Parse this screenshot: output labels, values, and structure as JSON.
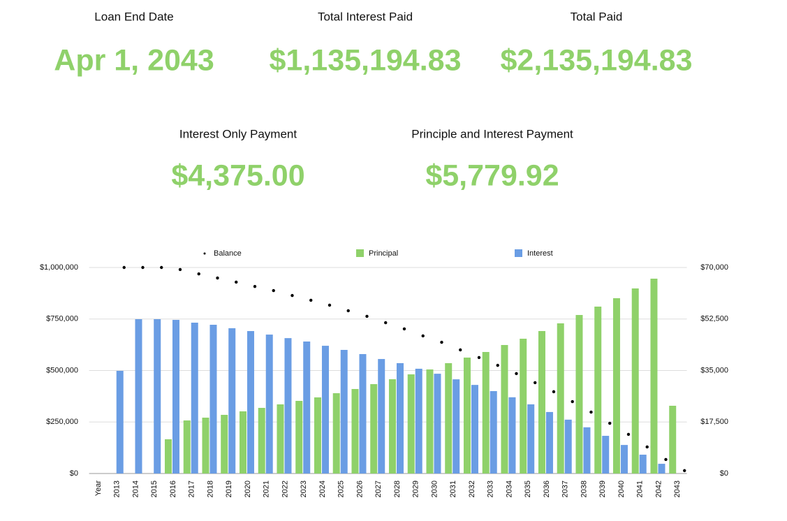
{
  "stats": [
    {
      "label": "Loan End Date",
      "value": "Apr 1, 2043"
    },
    {
      "label": "Total Interest Paid",
      "value": "$1,135,194.83"
    },
    {
      "label": "Total Paid",
      "value": "$2,135,194.83"
    },
    {
      "label": "Interest Only Payment",
      "value": "$4,375.00"
    },
    {
      "label": "Principle and Interest Payment",
      "value": "$5,779.92"
    }
  ],
  "chart_data": {
    "type": "bar",
    "categories": [
      "Year",
      "2013",
      "2014",
      "2015",
      "2016",
      "2017",
      "2018",
      "2019",
      "2020",
      "2021",
      "2022",
      "2023",
      "2024",
      "2025",
      "2026",
      "2027",
      "2028",
      "2029",
      "2030",
      "2031",
      "2032",
      "2033",
      "2034",
      "2035",
      "2036",
      "2037",
      "2038",
      "2039",
      "2040",
      "2041",
      "2042",
      "2043"
    ],
    "series": [
      {
        "name": "Balance",
        "type": "scatter",
        "color": "#000000",
        "axis": "y",
        "values": [
          null,
          1000000,
          1000000,
          1000000,
          990000,
          969000,
          949000,
          929000,
          908000,
          888000,
          864000,
          841000,
          817000,
          790000,
          763000,
          732000,
          702000,
          668000,
          637000,
          600000,
          563000,
          525000,
          485000,
          441000,
          397000,
          349000,
          298000,
          244000,
          190000,
          129000,
          68000,
          14000
        ]
      },
      {
        "name": "Principal",
        "type": "bar",
        "color": "#8fd16a",
        "axis": "y2",
        "values": [
          null,
          null,
          null,
          null,
          11630,
          18030,
          18980,
          19930,
          21120,
          22300,
          23490,
          24680,
          25860,
          27290,
          28710,
          30370,
          32030,
          33690,
          35360,
          37490,
          39390,
          41290,
          43660,
          45800,
          48410,
          51020,
          53860,
          56710,
          59560,
          62880,
          66200,
          23020
        ]
      },
      {
        "name": "Interest",
        "type": "bar",
        "color": "#6a9de4",
        "axis": "y2",
        "values": [
          null,
          34880,
          52440,
          52440,
          52200,
          51250,
          50540,
          49360,
          48400,
          47200,
          46000,
          44850,
          43400,
          42000,
          40580,
          38900,
          37500,
          35600,
          33900,
          32000,
          30100,
          28000,
          25900,
          23500,
          20900,
          18300,
          15700,
          12800,
          9700,
          6400,
          3300,
          null
        ]
      }
    ],
    "ylim": [
      0,
      1000000
    ],
    "yticks": [
      {
        "value": 0,
        "label": "$0"
      },
      {
        "value": 250000,
        "label": "$250,000"
      },
      {
        "value": 500000,
        "label": "$500,000"
      },
      {
        "value": 750000,
        "label": "$750,000"
      },
      {
        "value": 1000000,
        "label": "$1,000,000"
      }
    ],
    "y2lim": [
      0,
      70000
    ],
    "y2ticks": [
      {
        "value": 0,
        "label": "$0"
      },
      {
        "value": 17500,
        "label": "$17,500"
      },
      {
        "value": 35000,
        "label": "$35,000"
      },
      {
        "value": 52500,
        "label": "$52,500"
      },
      {
        "value": 70000,
        "label": "$70,000"
      }
    ],
    "grid": true,
    "legend": "top"
  }
}
